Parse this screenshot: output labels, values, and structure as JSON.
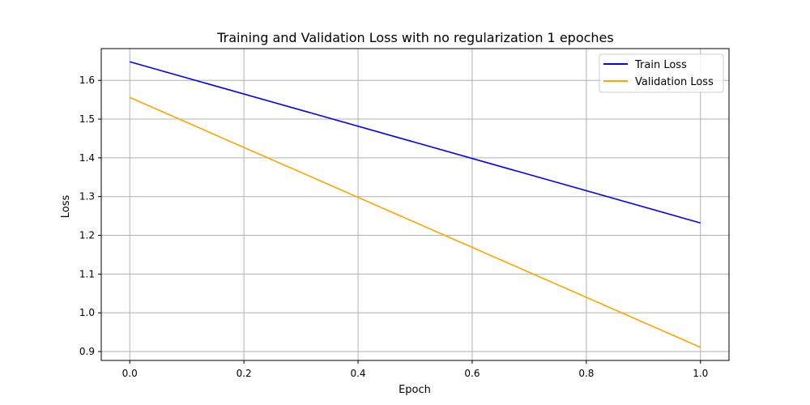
{
  "chart_data": {
    "type": "line",
    "title": "Training and Validation Loss with no regularization 1 epoches",
    "xlabel": "Epoch",
    "ylabel": "Loss",
    "xlim": [
      -0.05,
      1.05
    ],
    "ylim": [
      0.877,
      1.682
    ],
    "xticks": [
      0.0,
      0.2,
      0.4,
      0.6,
      0.8,
      1.0
    ],
    "xtick_labels": [
      "0.0",
      "0.2",
      "0.4",
      "0.6",
      "0.8",
      "1.0"
    ],
    "yticks": [
      0.9,
      1.0,
      1.1,
      1.2,
      1.3,
      1.4,
      1.5,
      1.6
    ],
    "ytick_labels": [
      "0.9",
      "1.0",
      "1.1",
      "1.2",
      "1.3",
      "1.4",
      "1.5",
      "1.6"
    ],
    "grid": true,
    "legend_position": "top-right",
    "x": [
      0,
      1
    ],
    "series": [
      {
        "name": "Train Loss",
        "values": [
          1.648,
          1.232
        ],
        "color": "#0000ff"
      },
      {
        "name": "Validation Loss",
        "values": [
          1.556,
          0.911
        ],
        "color": "#ffa500"
      }
    ]
  }
}
